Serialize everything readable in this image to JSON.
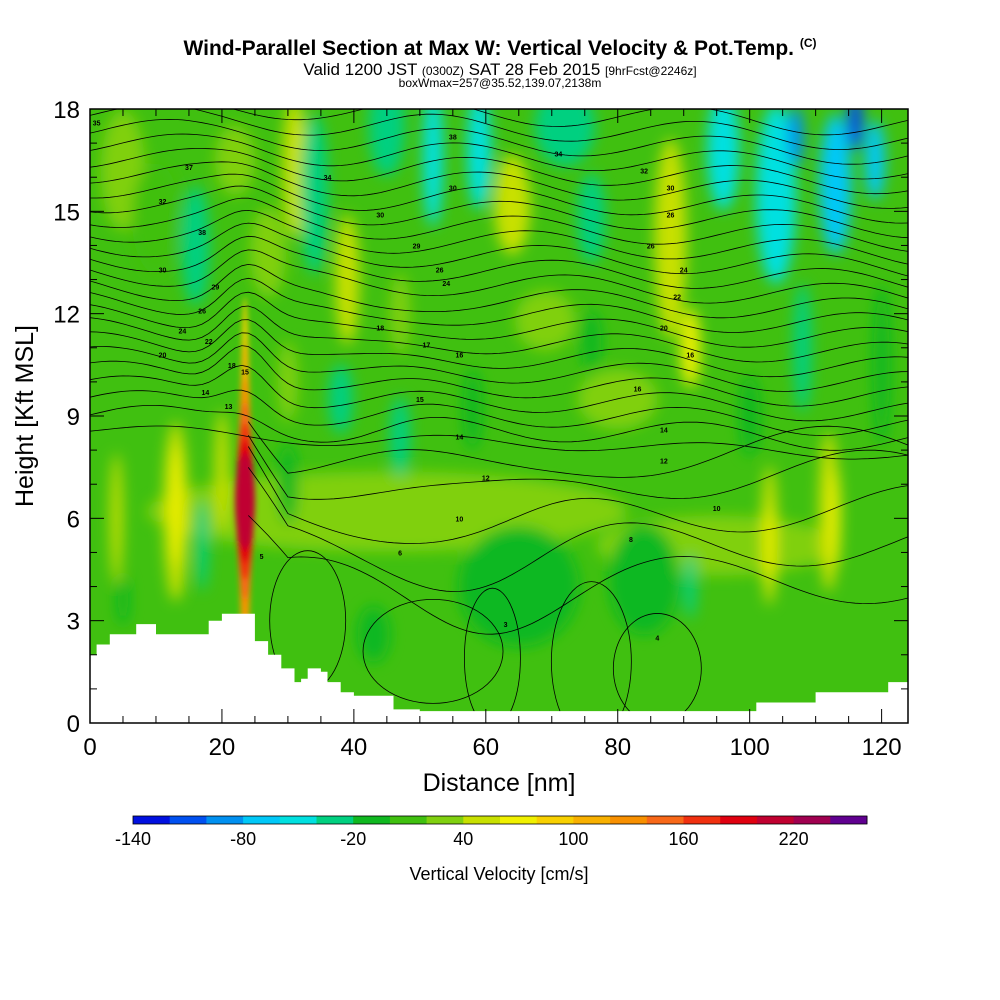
{
  "header": {
    "title": "Wind-Parallel Section at Max W: Vertical Velocity & Pot.Temp.",
    "copyright_mark": "(C)",
    "valid_prefix": "Valid 1200 JST",
    "valid_utc": "(0300Z)",
    "valid_date": "SAT 28 Feb 2015",
    "forecast_tag": "[9hrFcst@2246z]",
    "box_info": "boxWmax=257@35.52,139.07,2138m"
  },
  "chart_data": {
    "type": "heatmap",
    "title": "Wind-Parallel Section at Max W: Vertical Velocity & Pot.Temp.",
    "xlabel": "Distance [nm]",
    "ylabel": "Height [Kft MSL]",
    "xlim": [
      0,
      124
    ],
    "ylim": [
      0,
      18
    ],
    "xticks": [
      0,
      20,
      40,
      60,
      80,
      100,
      120
    ],
    "yticks": [
      0,
      3,
      6,
      9,
      12,
      15,
      18
    ],
    "fill_variable": "Vertical Velocity [cm/s]",
    "contour_variable": "Potential Temperature",
    "max_updraft": {
      "distance_nm": 23.5,
      "height_kft": 6.5,
      "value_cm_s": 257
    },
    "colorbar": {
      "label": "Vertical Velocity [cm/s]",
      "levels": [
        -140,
        -120,
        -100,
        -80,
        -60,
        -40,
        -20,
        0,
        20,
        40,
        60,
        80,
        100,
        120,
        140,
        160,
        180,
        200,
        220,
        240,
        260
      ],
      "tick_labels": [
        "-140",
        "-80",
        "-20",
        "40",
        "100",
        "160",
        "220"
      ],
      "colors": [
        "#0010e0",
        "#0050f0",
        "#0090f0",
        "#00c8f8",
        "#00e0e0",
        "#00d080",
        "#10b820",
        "#40c010",
        "#80d010",
        "#c8e000",
        "#f0f000",
        "#f8d000",
        "#f8b000",
        "#f89000",
        "#f86818",
        "#f03010",
        "#e00010",
        "#c00030",
        "#a00050",
        "#600090"
      ]
    },
    "terrain_profile_kft": [
      [
        0,
        2.0
      ],
      [
        1,
        2.3
      ],
      [
        3,
        2.6
      ],
      [
        7,
        2.9
      ],
      [
        10,
        2.6
      ],
      [
        14,
        2.6
      ],
      [
        18,
        3.0
      ],
      [
        20,
        3.2
      ],
      [
        24,
        3.2
      ],
      [
        25,
        2.4
      ],
      [
        27,
        2.0
      ],
      [
        29,
        1.6
      ],
      [
        31,
        1.2
      ],
      [
        32,
        1.3
      ],
      [
        33,
        1.6
      ],
      [
        35,
        1.5
      ],
      [
        36,
        1.2
      ],
      [
        38,
        0.9
      ],
      [
        40,
        0.8
      ],
      [
        45,
        0.8
      ],
      [
        46,
        0.4
      ],
      [
        50,
        0.35
      ],
      [
        60,
        0.35
      ],
      [
        70,
        0.35
      ],
      [
        80,
        0.35
      ],
      [
        90,
        0.35
      ],
      [
        99,
        0.35
      ],
      [
        101,
        0.6
      ],
      [
        106,
        0.6
      ],
      [
        110,
        0.9
      ],
      [
        120,
        0.9
      ],
      [
        121,
        1.2
      ],
      [
        124,
        1.2
      ]
    ],
    "contour_labels": [
      {
        "x": 1,
        "y": 17.6,
        "text": "35"
      },
      {
        "x": 15,
        "y": 16.3,
        "text": "37"
      },
      {
        "x": 11,
        "y": 15.3,
        "text": "32"
      },
      {
        "x": 17,
        "y": 14.4,
        "text": "38"
      },
      {
        "x": 11,
        "y": 13.3,
        "text": "30"
      },
      {
        "x": 19,
        "y": 12.8,
        "text": "29"
      },
      {
        "x": 17,
        "y": 12.1,
        "text": "26"
      },
      {
        "x": 14,
        "y": 11.5,
        "text": "24"
      },
      {
        "x": 18,
        "y": 11.2,
        "text": "22"
      },
      {
        "x": 11,
        "y": 10.8,
        "text": "20"
      },
      {
        "x": 21.5,
        "y": 10.5,
        "text": "18"
      },
      {
        "x": 23.5,
        "y": 10.3,
        "text": "15"
      },
      {
        "x": 17.5,
        "y": 9.7,
        "text": "14"
      },
      {
        "x": 21,
        "y": 9.3,
        "text": "13"
      },
      {
        "x": 26,
        "y": 4.9,
        "text": "5"
      },
      {
        "x": 36,
        "y": 16.0,
        "text": "34"
      },
      {
        "x": 44,
        "y": 14.9,
        "text": "30"
      },
      {
        "x": 49.5,
        "y": 14.0,
        "text": "29"
      },
      {
        "x": 53,
        "y": 13.3,
        "text": "26"
      },
      {
        "x": 54,
        "y": 12.9,
        "text": "24"
      },
      {
        "x": 44,
        "y": 11.6,
        "text": "18"
      },
      {
        "x": 51,
        "y": 11.1,
        "text": "17"
      },
      {
        "x": 56,
        "y": 10.8,
        "text": "16"
      },
      {
        "x": 50,
        "y": 9.5,
        "text": "15"
      },
      {
        "x": 56,
        "y": 8.4,
        "text": "14"
      },
      {
        "x": 60,
        "y": 7.2,
        "text": "12"
      },
      {
        "x": 56,
        "y": 6.0,
        "text": "10"
      },
      {
        "x": 47,
        "y": 5.0,
        "text": "6"
      },
      {
        "x": 63,
        "y": 2.9,
        "text": "3"
      },
      {
        "x": 55,
        "y": 17.2,
        "text": "38"
      },
      {
        "x": 71,
        "y": 16.7,
        "text": "34"
      },
      {
        "x": 55,
        "y": 15.7,
        "text": "30"
      },
      {
        "x": 84,
        "y": 16.2,
        "text": "32"
      },
      {
        "x": 88,
        "y": 15.7,
        "text": "30"
      },
      {
        "x": 88,
        "y": 14.9,
        "text": "26"
      },
      {
        "x": 85,
        "y": 14.0,
        "text": "26"
      },
      {
        "x": 90,
        "y": 13.3,
        "text": "24"
      },
      {
        "x": 89,
        "y": 12.5,
        "text": "22"
      },
      {
        "x": 87,
        "y": 11.6,
        "text": "20"
      },
      {
        "x": 91,
        "y": 10.8,
        "text": "16"
      },
      {
        "x": 83,
        "y": 9.8,
        "text": "16"
      },
      {
        "x": 87,
        "y": 8.6,
        "text": "14"
      },
      {
        "x": 87,
        "y": 7.7,
        "text": "12"
      },
      {
        "x": 95,
        "y": 6.3,
        "text": "10"
      },
      {
        "x": 82,
        "y": 5.4,
        "text": "8"
      },
      {
        "x": 86,
        "y": 2.5,
        "text": "4"
      }
    ]
  }
}
